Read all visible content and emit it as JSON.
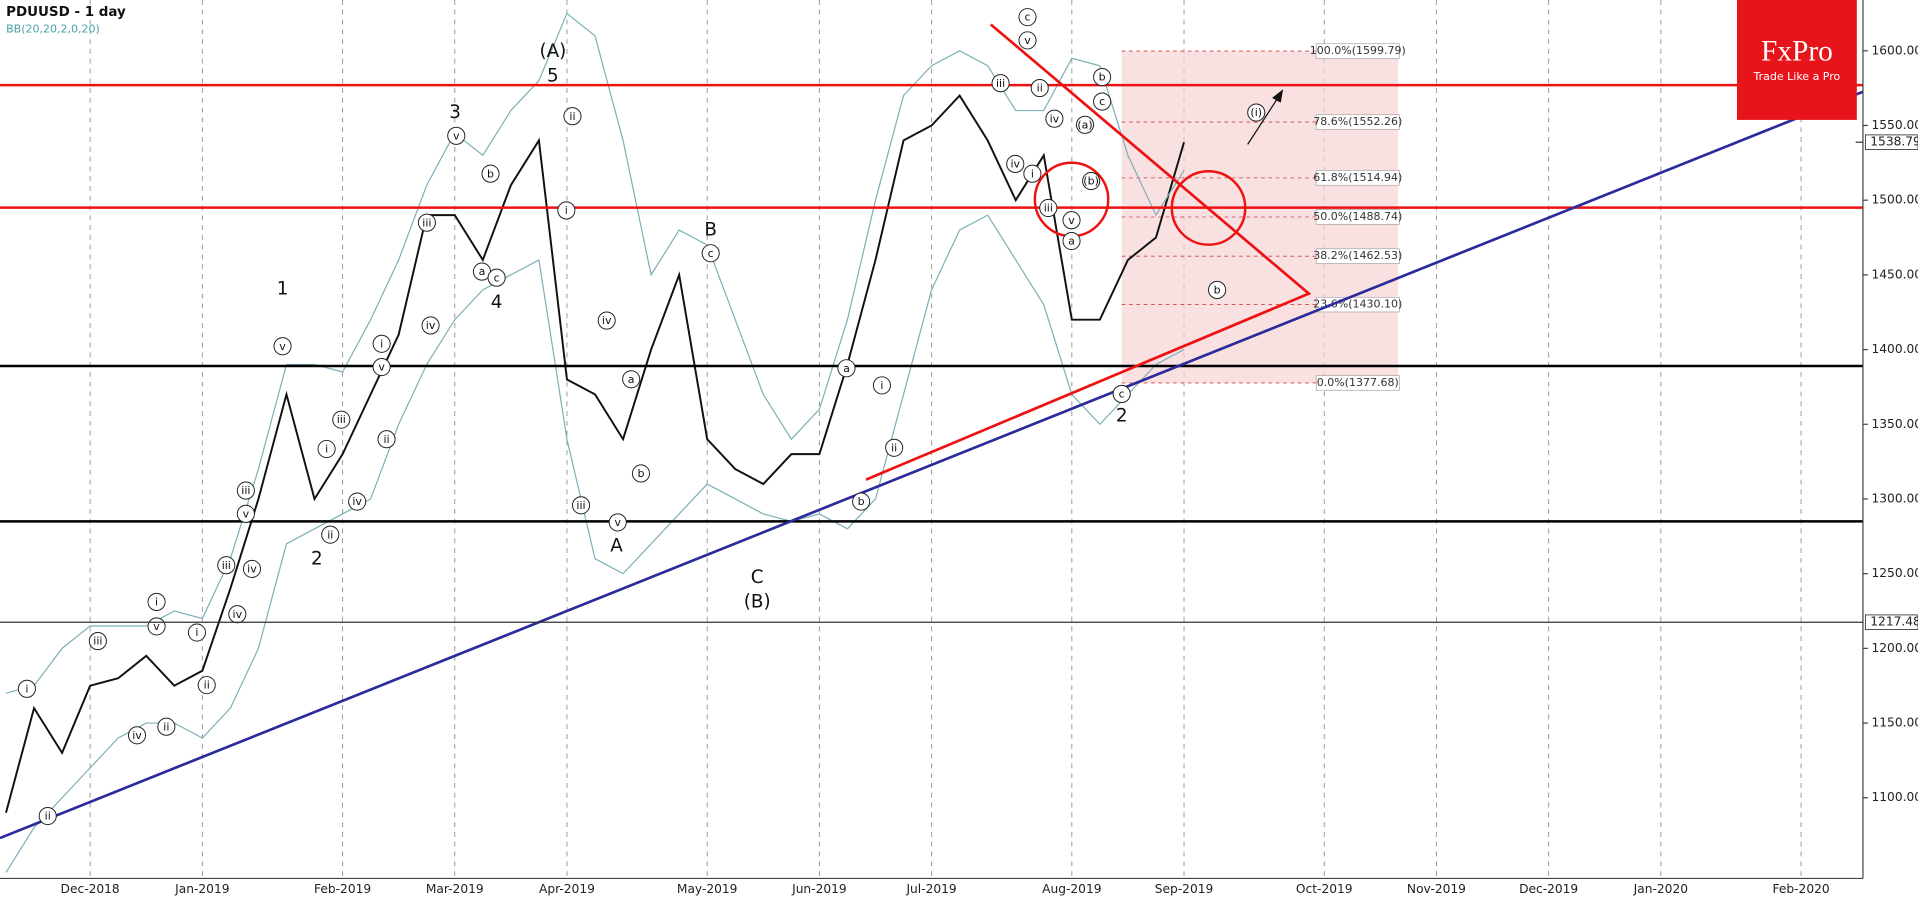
{
  "chart_data": {
    "type": "line",
    "title": "PDUUSD   - 1 day",
    "subtitle": "BB(20,20,2,0,20)",
    "logo": {
      "name": "FxPro",
      "tagline": "Trade Like a Pro"
    },
    "categories": [
      null,
      null,
      null,
      "Dec-2018",
      null,
      null,
      null,
      "Jan-2019",
      null,
      null,
      null,
      null,
      "Feb-2019",
      null,
      null,
      null,
      "Mar-2019",
      null,
      null,
      null,
      "Apr-2019",
      null,
      null,
      null,
      null,
      "May-2019",
      null,
      null,
      null,
      "Jun-2019",
      null,
      null,
      null,
      "Jul-2019",
      null,
      null,
      null,
      null,
      "Aug-2019",
      null,
      null,
      null,
      "Sep-2019",
      null,
      null,
      null,
      null,
      "Oct-2019",
      null,
      null,
      null,
      "Nov-2019",
      null,
      null,
      null,
      "Dec-2019",
      null,
      null,
      null,
      "Jan-2020",
      null,
      null,
      null,
      null,
      "Feb-2020",
      null
    ],
    "series": [
      {
        "color": "#111111",
        "values": [
          1090,
          1160,
          1130,
          1175,
          1180,
          1195,
          1175,
          1185,
          1240,
          1300,
          1370,
          1300,
          1330,
          1370,
          1410,
          1490,
          1490,
          1460,
          1510,
          1540,
          1380,
          1370,
          1340,
          1400,
          1450,
          1340,
          1320,
          1310,
          1330,
          1330,
          1390,
          1460,
          1540,
          1550,
          1570,
          1540,
          1500,
          1530,
          1420,
          1420,
          1460,
          1475,
          1538.79,
          null,
          null,
          null,
          null,
          null,
          null,
          null,
          null,
          null,
          null,
          null,
          null,
          null,
          null,
          null,
          null,
          null,
          null,
          null,
          null,
          null,
          null,
          null
        ]
      },
      {
        "color": "#7fb0b8",
        "values": [
          1170,
          1175,
          1200,
          1215,
          1215,
          1215,
          1225,
          1220,
          1260,
          1320,
          1390,
          1390,
          1385,
          1420,
          1460,
          1510,
          1545,
          1530,
          1560,
          1580,
          1625,
          1610,
          1540,
          1450,
          1480,
          1470,
          1420,
          1370,
          1340,
          1360,
          1420,
          1500,
          1570,
          1590,
          1600,
          1590,
          1560,
          1560,
          1595,
          1590,
          1530,
          1490,
          1520,
          null,
          null,
          null,
          null,
          null,
          null,
          null,
          null,
          null,
          null,
          null,
          null,
          null,
          null,
          null,
          null,
          null,
          null,
          null,
          null,
          null,
          null,
          null
        ]
      },
      {
        "color": "#7fb0b8",
        "values": [
          1050,
          1080,
          1100,
          1120,
          1140,
          1150,
          1150,
          1140,
          1160,
          1200,
          1270,
          1280,
          1290,
          1300,
          1350,
          1390,
          1420,
          1440,
          1450,
          1460,
          1340,
          1260,
          1250,
          1270,
          1290,
          1310,
          1300,
          1290,
          1285,
          1290,
          1280,
          1300,
          1370,
          1440,
          1480,
          1490,
          1460,
          1430,
          1370,
          1350,
          1370,
          1390,
          1400,
          null,
          null,
          null,
          null,
          null,
          null,
          null,
          null,
          null,
          null,
          null,
          null,
          null,
          null,
          null,
          null,
          null,
          null,
          null,
          null,
          null,
          null,
          null
        ]
      }
    ],
    "ylim": [
      1046,
      1634
    ],
    "yticks": [
      {
        "value": 1100,
        "label": "1100.00"
      },
      {
        "value": 1150,
        "label": "1150.00"
      },
      {
        "value": 1200,
        "label": "1200.00"
      },
      {
        "value": 1250,
        "label": "1250.00"
      },
      {
        "value": 1300,
        "label": "1300.00"
      },
      {
        "value": 1350,
        "label": "1350.00"
      },
      {
        "value": 1400,
        "label": "1400.00"
      },
      {
        "value": 1450,
        "label": "1450.00"
      },
      {
        "value": 1500,
        "label": "1500.00"
      },
      {
        "value": 1550,
        "label": "1550.00"
      },
      {
        "value": 1600,
        "label": "1600.00"
      }
    ],
    "price_tags": [
      1538.79,
      1217.48
    ],
    "levels": [
      {
        "value": 1577,
        "color": "#ee1111"
      },
      {
        "value": 1495,
        "color": "#ee1111"
      },
      {
        "value": 1389,
        "color": "#000000"
      },
      {
        "value": 1285,
        "color": "#000000"
      }
    ],
    "fib_levels": [
      {
        "value": 1599.79,
        "label": "100.0%(1599.79)"
      },
      {
        "value": 1552.26,
        "label": "78.6%(1552.26)"
      },
      {
        "value": 1514.94,
        "label": "61.8%(1514.94)"
      },
      {
        "value": 1488.74,
        "label": "50.0%(1488.74)"
      },
      {
        "value": 1462.53,
        "label": "38.2%(1462.53)"
      },
      {
        "value": 1430.1,
        "label": "23.6%(1430.10)"
      },
      {
        "value": 1377.68,
        "label": "0.0%(1377.68)"
      }
    ],
    "wave_labels": [
      "(A)",
      "5",
      "3",
      "4",
      "1",
      "2",
      "A",
      "B",
      "C",
      "(B)",
      "2",
      "v",
      "iii",
      "i",
      "ii",
      "iv",
      "v",
      "i",
      "ii",
      "iii",
      "iv",
      "v",
      "b",
      "a",
      "c",
      "i",
      "ii",
      "iii",
      "v",
      "iv",
      "a",
      "b",
      "c",
      "a",
      "b",
      "i",
      "ii",
      "c",
      "v",
      "iii",
      "ii",
      "iv",
      "i",
      "iii",
      "v",
      "a",
      "iv",
      "(a)",
      "(b)",
      "c",
      "b",
      "c",
      "b",
      "(i)",
      "iii",
      "i",
      "ii",
      "iv",
      "ii",
      "v",
      "i",
      "i",
      "ii",
      "iii",
      "iv",
      "v",
      "iii",
      "iv"
    ]
  }
}
